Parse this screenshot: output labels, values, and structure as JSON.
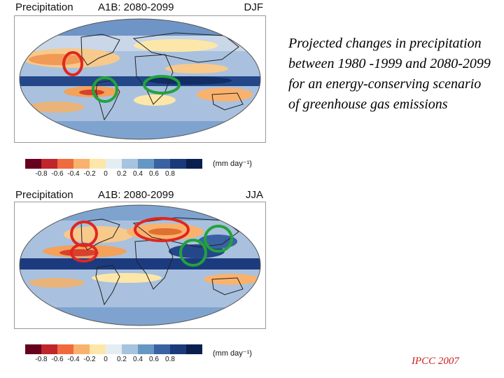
{
  "panels": [
    {
      "title_left": "Precipitation",
      "title_mid": "A1B: 2080-2099",
      "title_right": "DJF",
      "highlight_circles": [
        {
          "color": "red",
          "region": "southwest North America"
        },
        {
          "color": "green",
          "region": "northern South America"
        },
        {
          "color": "green",
          "region": "central/east Africa"
        }
      ]
    },
    {
      "title_left": "Precipitation",
      "title_mid": "A1B: 2080-2099",
      "title_right": "JJA",
      "highlight_circles": [
        {
          "color": "red",
          "region": "United States"
        },
        {
          "color": "red",
          "region": "Central America & Caribbean"
        },
        {
          "color": "red",
          "region": "Mediterranean & Middle East"
        },
        {
          "color": "green",
          "region": "India"
        },
        {
          "color": "green",
          "region": "East Asia"
        }
      ]
    }
  ],
  "colorbar": {
    "units": "(mm day⁻¹)",
    "ticks": [
      "-0.8",
      "-0.6",
      "-0.4",
      "-0.2",
      "0",
      "0.2",
      "0.4",
      "0.6",
      "0.8"
    ],
    "colors": [
      "#67001f",
      "#c0262b",
      "#ef6b3f",
      "#f9b26e",
      "#fde7a8",
      "#e4edf2",
      "#a6c4dd",
      "#6697c4",
      "#3a62a3",
      "#1a3a7a",
      "#0b1f4f"
    ]
  },
  "palette": {
    "wet": "#2b4c8c",
    "moderate_wet": "#7ea3cf",
    "neutral": "#c9d7e8",
    "dry": "#f4a15a",
    "very_dry": "#d8402e",
    "land_outline": "#222222",
    "circle_red": "#e0261f",
    "circle_green": "#22a33a"
  },
  "caption": "Projected changes in precipitation between 1980 -1999 and 2080-2099 for an energy-conserving scenario of greenhouse gas emissions",
  "credit": "IPCC 2007"
}
